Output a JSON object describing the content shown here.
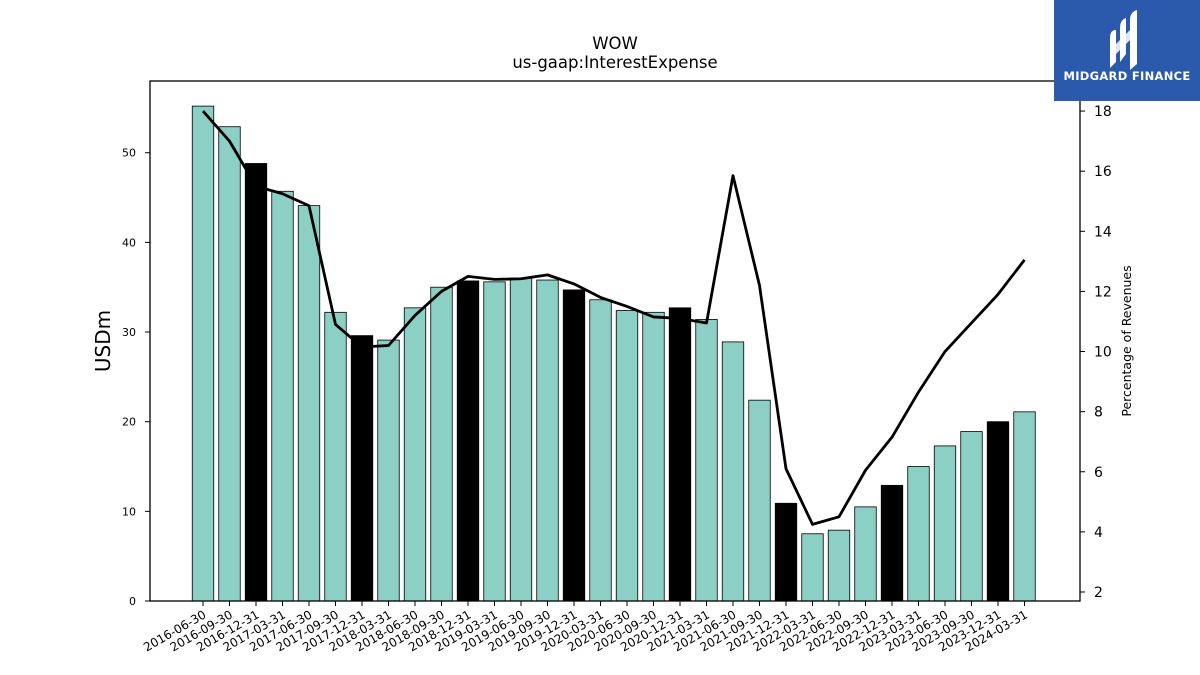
{
  "brand": {
    "name": "MIDGARD FINANCE",
    "color": "#2b5aad"
  },
  "chart_data": {
    "type": "bar",
    "title": "WOW",
    "subtitle": "us-gaap:InterestExpense",
    "ylabel": "USDm",
    "y2label": "Percentage of Revenues",
    "ylim": [
      0,
      58
    ],
    "y2lim": [
      1.7,
      19.0
    ],
    "yticks": [
      0,
      10,
      20,
      30,
      40,
      50
    ],
    "y2ticks": [
      2,
      4,
      6,
      8,
      10,
      12,
      14,
      16,
      18
    ],
    "colors": {
      "bar": "#8ccfc4",
      "highlight": "#000000",
      "line": "#000000"
    },
    "categories": [
      "2016-06-30",
      "2016-09-30",
      "2016-12-31",
      "2017-03-31",
      "2017-06-30",
      "2017-09-30",
      "2017-12-31",
      "2018-03-31",
      "2018-06-30",
      "2018-09-30",
      "2018-12-31",
      "2019-03-31",
      "2019-06-30",
      "2019-09-30",
      "2019-12-31",
      "2020-03-31",
      "2020-06-30",
      "2020-09-30",
      "2020-12-31",
      "2021-03-31",
      "2021-06-30",
      "2021-09-30",
      "2021-12-31",
      "2022-03-31",
      "2022-06-30",
      "2022-09-30",
      "2022-12-31",
      "2023-03-31",
      "2023-06-30",
      "2023-09-30",
      "2023-12-31",
      "2024-03-31"
    ],
    "series": [
      {
        "type": "bar",
        "axis": "left",
        "values": [
          55.2,
          52.9,
          48.8,
          45.7,
          44.1,
          32.2,
          29.6,
          29.1,
          32.7,
          35.0,
          35.7,
          35.6,
          36.0,
          35.8,
          34.7,
          33.6,
          32.4,
          32.2,
          32.7,
          31.4,
          28.9,
          22.4,
          10.9,
          7.5,
          7.9,
          10.5,
          12.9,
          15.0,
          17.3,
          18.9,
          20.0,
          21.1
        ],
        "highlight": [
          false,
          false,
          true,
          false,
          false,
          false,
          true,
          false,
          false,
          false,
          true,
          false,
          false,
          false,
          true,
          false,
          false,
          false,
          true,
          false,
          false,
          false,
          true,
          false,
          false,
          false,
          true,
          false,
          false,
          false,
          true,
          false
        ]
      },
      {
        "type": "line",
        "axis": "right",
        "values": [
          18.0,
          17.0,
          15.5,
          15.25,
          14.85,
          10.9,
          10.15,
          10.2,
          11.2,
          12.0,
          12.5,
          12.4,
          12.42,
          12.55,
          12.25,
          11.8,
          11.5,
          11.15,
          11.1,
          10.95,
          15.85,
          12.2,
          6.1,
          4.25,
          4.5,
          6.05,
          7.15,
          8.65,
          10.0,
          10.95,
          11.9,
          13.05
        ]
      }
    ]
  }
}
